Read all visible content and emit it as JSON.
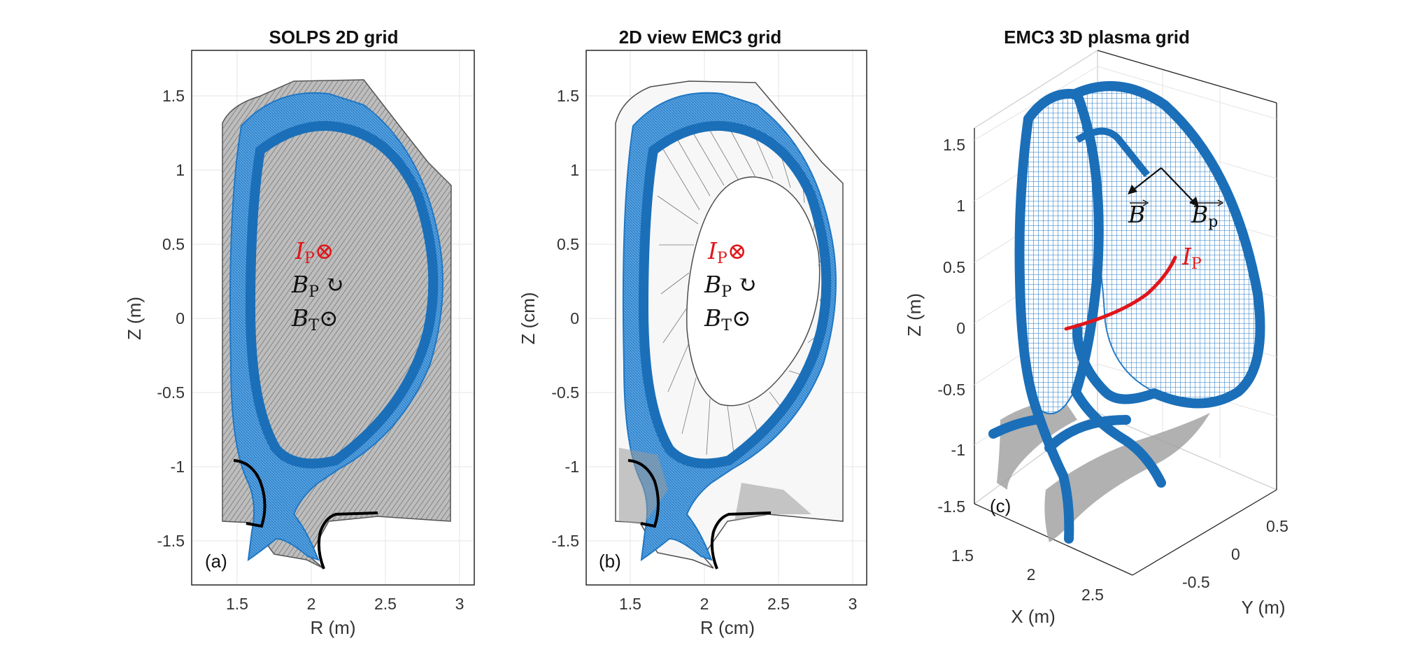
{
  "panels": [
    {
      "id": "a",
      "title": "SOLPS 2D grid",
      "xlabel": "R (m)",
      "ylabel": "Z (m)",
      "xticks": [
        "1.5",
        "2",
        "2.5",
        "3"
      ],
      "yticks": [
        "1.5",
        "1",
        "0.5",
        "0",
        "-0.5",
        "-1",
        "-1.5"
      ],
      "panel_label": "(a)"
    },
    {
      "id": "b",
      "title": "2D view EMC3 grid",
      "xlabel": "R (cm)",
      "ylabel": "Z (cm)",
      "xticks": [
        "1.5",
        "2",
        "2.5",
        "3"
      ],
      "yticks": [
        "1.5",
        "1",
        "0.5",
        "0",
        "-0.5",
        "-1",
        "-1.5"
      ],
      "panel_label": "(b)"
    },
    {
      "id": "c",
      "title": "EMC3 3D plasma grid",
      "zlabel": "Z (m)",
      "xlabel": "X (m)",
      "ylabel": "Y (m)",
      "zticks": [
        "1.5",
        "1",
        "0.5",
        "0",
        "-0.5",
        "-1",
        "-1.5"
      ],
      "xticks": [
        "1.5",
        "2",
        "2.5"
      ],
      "yticks": [
        "0.5",
        "0",
        "-0.5"
      ],
      "panel_label": "(c)"
    }
  ],
  "annotations": {
    "ip_symbol": "I",
    "ip_sub": "P",
    "bp_symbol": "B",
    "bp_sub": "P",
    "bt_symbol": "B",
    "bt_sub": "T",
    "b_vec": "B",
    "bp_vec_sub": "p",
    "otimes": "⊗",
    "odot": "⊙",
    "circ_arrow": "↻"
  },
  "colors": {
    "grid_blue": "#1f77c4",
    "grid_gray": "#8a8a8a",
    "current_red": "#e0161b",
    "wall": "#000000",
    "axes": "#262626"
  }
}
